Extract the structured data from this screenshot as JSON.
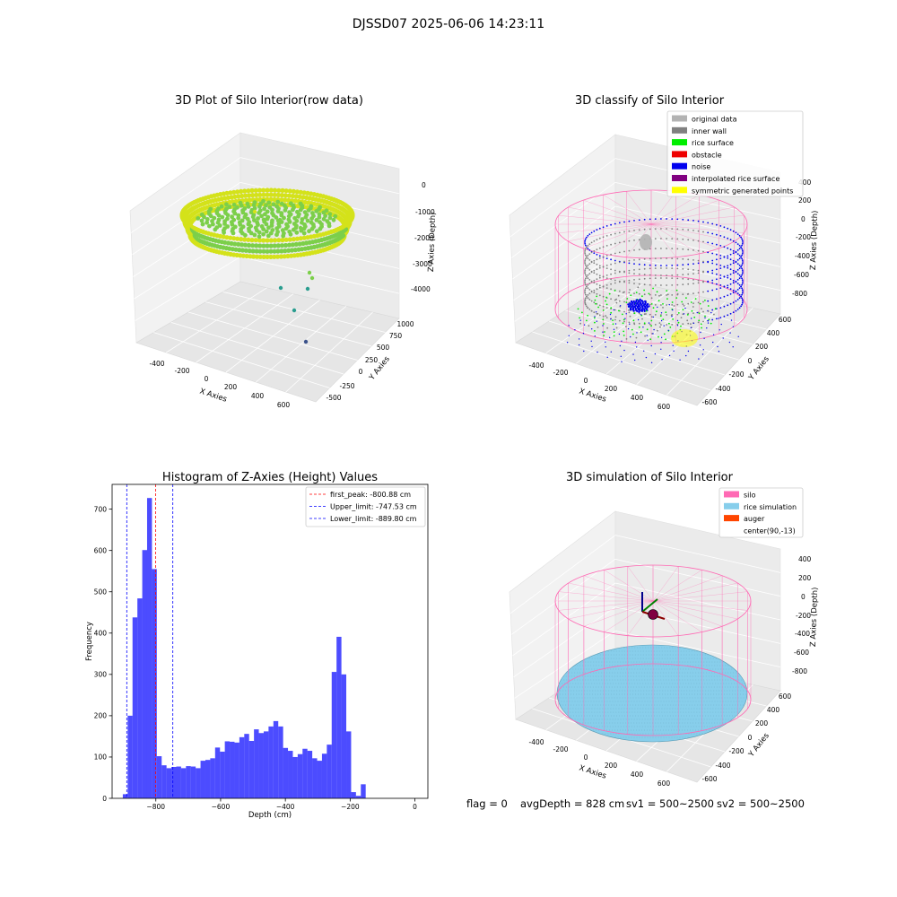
{
  "figure": {
    "suptitle": "DJSSD07 2025-06-06 14:23:11",
    "footer": {
      "flag": "flag = 0",
      "avg_depth": "avgDepth = 828 cm",
      "sv1": "sv1 = 500~2500",
      "sv2": "sv2 = 500~2500"
    }
  },
  "panels": {
    "raw": {
      "title": "3D Plot of Silo Interior(row data)",
      "xlabel": "X Axies",
      "ylabel": "Y Axies",
      "zlabel": "Z Axies (Depth)",
      "x_ticks": [
        "-400",
        "-200",
        "0",
        "200",
        "400",
        "600"
      ],
      "y_ticks": [
        "-500",
        "-250",
        "0",
        "250",
        "500",
        "750",
        "1000"
      ],
      "z_ticks": [
        "-4000",
        "-3000",
        "-2000",
        "-1000",
        "0"
      ],
      "colors": {
        "ring": "#d4e21a",
        "inner": "#7ccf4a",
        "outlier": "#2a9d8f",
        "deep": "#3b528b"
      }
    },
    "classify": {
      "title": "3D classify of Silo Interior",
      "xlabel": "X Axies",
      "ylabel": "Y Axies",
      "zlabel": "Z Axies (Depth)",
      "x_ticks": [
        "-400",
        "-200",
        "0",
        "200",
        "400",
        "600"
      ],
      "y_ticks": [
        "-600",
        "-400",
        "-200",
        "0",
        "200",
        "400",
        "600"
      ],
      "z_ticks": [
        "-800",
        "-600",
        "-400",
        "-200",
        "0",
        "200",
        "400"
      ],
      "legend": [
        {
          "label": "original data",
          "color": "#b3b3b3"
        },
        {
          "label": "inner wall",
          "color": "#808080"
        },
        {
          "label": "rice surface",
          "color": "#00ee00"
        },
        {
          "label": "obstacle",
          "color": "#ee0000"
        },
        {
          "label": "noise",
          "color": "#0000ee"
        },
        {
          "label": "interpolated rice surface",
          "color": "#800080"
        },
        {
          "label": "symmetric generated points",
          "color": "#ffff00"
        }
      ]
    },
    "simulation": {
      "title": "3D simulation of Silo Interior",
      "xlabel": "X Axies",
      "ylabel": "Y Axies",
      "zlabel": "Z Axies (Depth)",
      "x_ticks": [
        "-400",
        "-200",
        "0",
        "200",
        "400",
        "600"
      ],
      "y_ticks": [
        "-600",
        "-400",
        "-200",
        "0",
        "200",
        "400",
        "600"
      ],
      "z_ticks": [
        "-800",
        "-600",
        "-400",
        "-200",
        "0",
        "200",
        "400"
      ],
      "legend": [
        {
          "label": "silo",
          "color": "#ff69b4"
        },
        {
          "label": "rice simulation",
          "color": "#87ceeb"
        },
        {
          "label": "auger",
          "color": "#ff4500"
        },
        {
          "label": "center(90,-13)",
          "color": "#ffffff"
        }
      ]
    }
  },
  "chart_data": {
    "type": "bar",
    "title": "Histogram of Z-Axies (Height) Values",
    "xlabel": "Depth (cm)",
    "ylabel": "Frequency",
    "xlim": [
      -935,
      40
    ],
    "ylim": [
      0,
      760
    ],
    "x_ticks": [
      -800,
      -600,
      -400,
      -200,
      0
    ],
    "y_ticks": [
      0,
      100,
      200,
      300,
      400,
      500,
      600,
      700
    ],
    "bar_color": "#0000ff",
    "bins_start": -902,
    "bin_width": 15,
    "values": [
      10,
      200,
      438,
      484,
      601,
      727,
      555,
      102,
      80,
      73,
      76,
      77,
      73,
      78,
      77,
      73,
      91,
      93,
      97,
      123,
      113,
      138,
      137,
      135,
      148,
      156,
      139,
      167,
      158,
      162,
      174,
      187,
      174,
      122,
      115,
      100,
      107,
      120,
      115,
      97,
      91,
      108,
      130,
      306,
      391,
      300,
      162,
      15,
      6,
      34
    ],
    "vlines": [
      {
        "name": "first_peak",
        "label": "first_peak: -800.88 cm",
        "x": -800.88,
        "color": "#ff0000"
      },
      {
        "name": "upper_limit",
        "label": "Upper_limit: -747.53 cm",
        "x": -747.53,
        "color": "#0000ff"
      },
      {
        "name": "lower_limit",
        "label": "Lower_limit: -889.80 cm",
        "x": -889.8,
        "color": "#0000ff"
      }
    ],
    "legend_position": "top-right"
  }
}
